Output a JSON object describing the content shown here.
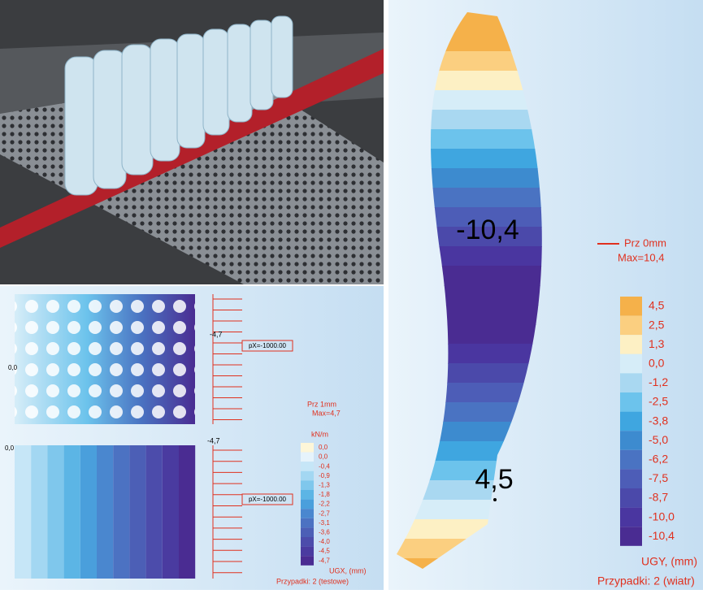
{
  "right_panel": {
    "min_label": "-10,4",
    "max_label": "4,5",
    "legend_title": "Prz  0mm",
    "legend_max": "Max=10,4",
    "scale": [
      "4,5",
      "2,5",
      "1,3",
      "0,0",
      "-1,2",
      "-2,5",
      "-3,8",
      "-5,0",
      "-6,2",
      "-7,5",
      "-8,7",
      "-10,0",
      "-10,4"
    ],
    "colors": [
      "#f5b14a",
      "#fbcf80",
      "#fdf0c4",
      "#d6edf8",
      "#a9d8f1",
      "#6cc3ec",
      "#3fa6e0",
      "#3d8bcf",
      "#4a73c2",
      "#4d5db7",
      "#4b49aa",
      "#4a36a0",
      "#4a2c92"
    ],
    "unit": "UGY, (mm)",
    "cases": "Przypadki: 2 (wiatr)"
  },
  "left_panel": {
    "top_value": "-4,7",
    "load_top": "pX=-1000.00",
    "left_value": "0,0",
    "left_value_bottom": "0,0",
    "bottom_value": "-4,7",
    "load_bottom": "pX=-1000.00",
    "legend_title": "Prz  1mm",
    "legend_max": "Max=4,7",
    "load_unit": "kN/m",
    "scale": [
      "0,0",
      "0,0",
      "-0,4",
      "-0,9",
      "-1,3",
      "-1,8",
      "-2,2",
      "-2,7",
      "-3,1",
      "-3,6",
      "-4,0",
      "-4,5",
      "-4,7"
    ],
    "colors": [
      "#fdf6d8",
      "#e6f3fb",
      "#c6e6f7",
      "#a3d7f2",
      "#7fc7ec",
      "#5cb5e5",
      "#4a9fdc",
      "#4a87cf",
      "#4c72c2",
      "#4c5fb6",
      "#4c4cab",
      "#4a3ba0",
      "#4a2c92"
    ],
    "unit": "UGX, (mm)",
    "cases": "Przypadki: 2 (testowe)"
  }
}
